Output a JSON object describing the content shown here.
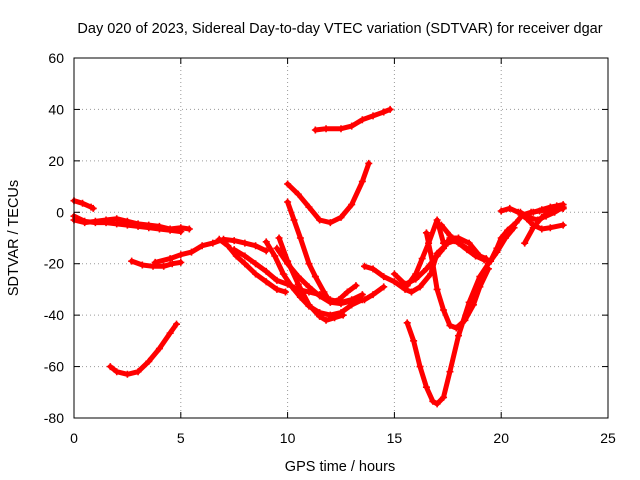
{
  "chart_data": {
    "type": "scatter",
    "title": "Day 020 of 2023, Sidereal Day-to-day VTEC variation (SDTVAR) for receiver dgar",
    "xlabel": "GPS time / hours",
    "ylabel": "SDTVAR / TECUs",
    "xlim": [
      0,
      25
    ],
    "ylim": [
      -80,
      60
    ],
    "xticks": [
      0,
      5,
      10,
      15,
      20,
      25
    ],
    "yticks": [
      -80,
      -60,
      -40,
      -20,
      0,
      20,
      40,
      60
    ],
    "grid": true,
    "legend": "none",
    "marker": "plus",
    "color": "#ff0000",
    "series": [
      {
        "points": [
          [
            0.0,
            4.5
          ],
          [
            0.4,
            3.5
          ],
          [
            0.8,
            2.0
          ],
          [
            0.9,
            1.5
          ]
        ]
      },
      {
        "points": [
          [
            0.0,
            -3.0
          ],
          [
            0.5,
            -4.0
          ],
          [
            1.0,
            -3.5
          ],
          [
            1.5,
            -3.0
          ],
          [
            2.0,
            -2.5
          ],
          [
            2.5,
            -3.5
          ],
          [
            3.0,
            -4.5
          ],
          [
            3.5,
            -5.0
          ],
          [
            4.0,
            -5.5
          ],
          [
            4.5,
            -6.5
          ],
          [
            5.0,
            -6.0
          ],
          [
            5.4,
            -6.5
          ]
        ]
      },
      {
        "points": [
          [
            0.0,
            -1.5
          ],
          [
            0.5,
            -3.5
          ],
          [
            1.0,
            -4.0
          ],
          [
            1.5,
            -4.0
          ],
          [
            2.0,
            -4.5
          ],
          [
            2.5,
            -5.0
          ],
          [
            3.0,
            -5.5
          ],
          [
            3.5,
            -6.0
          ],
          [
            4.0,
            -6.5
          ],
          [
            4.5,
            -7.0
          ],
          [
            5.0,
            -7.5
          ]
        ]
      },
      {
        "points": [
          [
            1.7,
            -60.0
          ],
          [
            2.0,
            -62.0
          ],
          [
            2.5,
            -63.0
          ],
          [
            3.0,
            -62.0
          ],
          [
            3.5,
            -58.0
          ],
          [
            4.0,
            -53.0
          ],
          [
            4.5,
            -47.0
          ],
          [
            4.8,
            -43.5
          ]
        ]
      },
      {
        "points": [
          [
            2.7,
            -19.0
          ],
          [
            3.2,
            -20.5
          ],
          [
            3.7,
            -21.0
          ],
          [
            4.2,
            -21.0
          ],
          [
            4.6,
            -20.0
          ],
          [
            5.0,
            -19.5
          ]
        ]
      },
      {
        "points": [
          [
            3.8,
            -19.5
          ],
          [
            4.5,
            -18.0
          ],
          [
            5.0,
            -16.5
          ],
          [
            5.5,
            -15.5
          ],
          [
            6.0,
            -13.0
          ],
          [
            6.5,
            -12.0
          ],
          [
            7.0,
            -10.5
          ],
          [
            7.5,
            -11.0
          ],
          [
            8.0,
            -12.0
          ],
          [
            8.5,
            -13.0
          ],
          [
            9.0,
            -15.0
          ]
        ]
      },
      {
        "points": [
          [
            6.8,
            -10.5
          ],
          [
            7.2,
            -13.0
          ],
          [
            7.6,
            -17.0
          ],
          [
            8.0,
            -20.0
          ],
          [
            8.5,
            -24.0
          ],
          [
            9.0,
            -27.0
          ],
          [
            9.5,
            -30.0
          ],
          [
            9.9,
            -31.0
          ]
        ]
      },
      {
        "points": [
          [
            7.5,
            -14.5
          ],
          [
            8.0,
            -17.0
          ],
          [
            8.5,
            -20.0
          ],
          [
            9.0,
            -23.0
          ],
          [
            9.5,
            -26.5
          ],
          [
            10.0,
            -28.0
          ],
          [
            10.5,
            -30.0
          ],
          [
            11.0,
            -31.0
          ],
          [
            11.5,
            -32.0
          ],
          [
            12.0,
            -34.0
          ],
          [
            12.5,
            -35.0
          ],
          [
            13.0,
            -34.0
          ],
          [
            13.5,
            -32.0
          ]
        ]
      },
      {
        "points": [
          [
            9.0,
            -11.5
          ],
          [
            9.4,
            -17.0
          ],
          [
            9.8,
            -24.0
          ],
          [
            10.2,
            -29.0
          ],
          [
            10.6,
            -33.0
          ],
          [
            11.0,
            -36.5
          ],
          [
            11.5,
            -39.0
          ],
          [
            12.0,
            -40.0
          ],
          [
            12.5,
            -39.0
          ],
          [
            13.0,
            -36.0
          ],
          [
            13.5,
            -34.0
          ]
        ]
      },
      {
        "points": [
          [
            9.5,
            -14.0
          ],
          [
            10.0,
            -20.0
          ],
          [
            10.5,
            -25.0
          ],
          [
            11.0,
            -29.0
          ],
          [
            11.5,
            -32.5
          ],
          [
            12.0,
            -35.0
          ],
          [
            12.5,
            -35.5
          ],
          [
            13.0,
            -34.5
          ],
          [
            13.6,
            -34.0
          ],
          [
            14.0,
            -32.0
          ],
          [
            14.5,
            -29.0
          ]
        ]
      },
      {
        "points": [
          [
            10.0,
            4.0
          ],
          [
            10.3,
            -3.0
          ],
          [
            10.6,
            -10.0
          ],
          [
            11.0,
            -20.0
          ],
          [
            11.3,
            -25.0
          ],
          [
            11.7,
            -31.0
          ],
          [
            12.0,
            -35.0
          ],
          [
            12.4,
            -34.0
          ],
          [
            12.8,
            -31.0
          ],
          [
            13.2,
            -28.5
          ]
        ]
      },
      {
        "points": [
          [
            10.0,
            11.0
          ],
          [
            10.5,
            7.0
          ],
          [
            11.0,
            2.0
          ],
          [
            11.5,
            -3.0
          ],
          [
            12.0,
            -4.0
          ],
          [
            12.5,
            -2.0
          ],
          [
            13.0,
            3.0
          ],
          [
            13.5,
            12.0
          ],
          [
            13.8,
            19.0
          ]
        ]
      },
      {
        "points": [
          [
            9.6,
            -10.0
          ],
          [
            10.0,
            -19.0
          ],
          [
            10.5,
            -28.0
          ],
          [
            11.0,
            -36.0
          ],
          [
            11.5,
            -40.5
          ],
          [
            11.8,
            -42.0
          ],
          [
            12.2,
            -41.0
          ],
          [
            12.6,
            -40.0
          ]
        ]
      },
      {
        "points": [
          [
            11.3,
            32.0
          ],
          [
            11.8,
            32.5
          ],
          [
            12.5,
            32.5
          ],
          [
            13.0,
            33.5
          ],
          [
            13.5,
            36.0
          ],
          [
            14.0,
            37.5
          ],
          [
            14.5,
            39.0
          ],
          [
            14.8,
            40.0
          ]
        ]
      },
      {
        "points": [
          [
            13.6,
            -21.0
          ],
          [
            14.0,
            -22.0
          ],
          [
            14.5,
            -25.0
          ],
          [
            15.0,
            -27.0
          ],
          [
            15.5,
            -30.0
          ],
          [
            15.8,
            -31.0
          ],
          [
            16.2,
            -29.0
          ],
          [
            16.7,
            -24.0
          ],
          [
            17.0,
            -16.0
          ],
          [
            17.5,
            -12.0
          ],
          [
            18.0,
            -10.5
          ]
        ]
      },
      {
        "points": [
          [
            15.0,
            -24.0
          ],
          [
            15.5,
            -28.0
          ],
          [
            16.0,
            -26.0
          ],
          [
            16.5,
            -22.0
          ],
          [
            17.0,
            -17.0
          ],
          [
            17.3,
            -14.0
          ],
          [
            17.6,
            -10.0
          ],
          [
            18.0,
            -10.0
          ],
          [
            18.5,
            -12.0
          ],
          [
            19.0,
            -17.0
          ]
        ]
      },
      {
        "points": [
          [
            15.6,
            -28.5
          ],
          [
            16.0,
            -24.0
          ],
          [
            16.3,
            -18.0
          ],
          [
            16.6,
            -12.0
          ],
          [
            17.0,
            -3.0
          ],
          [
            17.3,
            -12.0
          ],
          [
            17.8,
            -11.0
          ],
          [
            18.2,
            -13.0
          ],
          [
            18.6,
            -15.0
          ],
          [
            19.0,
            -17.0
          ],
          [
            19.3,
            -18.0
          ]
        ]
      },
      {
        "points": [
          [
            15.6,
            -43.0
          ],
          [
            15.9,
            -50.0
          ],
          [
            16.2,
            -60.0
          ],
          [
            16.5,
            -68.0
          ],
          [
            16.8,
            -73.5
          ],
          [
            17.0,
            -74.5
          ],
          [
            17.3,
            -72.0
          ],
          [
            17.6,
            -62.0
          ],
          [
            18.0,
            -48.0
          ],
          [
            18.5,
            -35.0
          ],
          [
            19.0,
            -25.0
          ],
          [
            19.4,
            -20.0
          ]
        ]
      },
      {
        "points": [
          [
            16.5,
            -8.0
          ],
          [
            16.8,
            -20.0
          ],
          [
            17.0,
            -30.0
          ],
          [
            17.3,
            -38.0
          ],
          [
            17.6,
            -44.0
          ],
          [
            17.9,
            -45.0
          ],
          [
            18.3,
            -42.0
          ],
          [
            18.7,
            -36.0
          ],
          [
            19.0,
            -29.0
          ],
          [
            19.4,
            -22.0
          ]
        ]
      },
      {
        "points": [
          [
            17.2,
            -5.0
          ],
          [
            17.6,
            -9.0
          ],
          [
            18.0,
            -12.0
          ],
          [
            18.4,
            -14.5
          ],
          [
            18.8,
            -17.0
          ],
          [
            19.2,
            -18.5
          ],
          [
            19.5,
            -19.0
          ],
          [
            19.8,
            -15.5
          ],
          [
            20.2,
            -10.0
          ],
          [
            20.6,
            -6.0
          ]
        ]
      },
      {
        "points": [
          [
            19.5,
            -19.0
          ],
          [
            19.8,
            -14.0
          ],
          [
            20.0,
            -10.0
          ],
          [
            20.3,
            -7.0
          ],
          [
            20.7,
            -4.0
          ],
          [
            21.0,
            -1.0
          ],
          [
            21.4,
            0.0
          ],
          [
            21.8,
            0.5
          ],
          [
            22.2,
            1.0
          ],
          [
            22.6,
            1.0
          ],
          [
            22.9,
            1.5
          ]
        ]
      },
      {
        "points": [
          [
            20.0,
            0.5
          ],
          [
            20.4,
            1.5
          ],
          [
            20.8,
            0.0
          ],
          [
            21.2,
            -2.5
          ],
          [
            21.5,
            -5.0
          ],
          [
            21.9,
            -6.5
          ],
          [
            22.3,
            -6.0
          ],
          [
            22.9,
            -5.0
          ]
        ]
      },
      {
        "points": [
          [
            20.9,
            0.0
          ],
          [
            21.3,
            -2.0
          ],
          [
            21.7,
            -3.0
          ],
          [
            22.1,
            -1.5
          ],
          [
            22.5,
            0.0
          ],
          [
            22.9,
            2.0
          ]
        ]
      },
      {
        "points": [
          [
            21.1,
            -12.0
          ],
          [
            21.5,
            -6.0
          ],
          [
            21.9,
            -2.0
          ],
          [
            22.2,
            0.0
          ],
          [
            22.6,
            1.0
          ],
          [
            22.9,
            1.5
          ]
        ]
      },
      {
        "points": [
          [
            21.5,
            0.0
          ],
          [
            21.9,
            1.0
          ],
          [
            22.3,
            2.0
          ],
          [
            22.6,
            2.5
          ],
          [
            22.9,
            3.0
          ]
        ]
      }
    ]
  }
}
